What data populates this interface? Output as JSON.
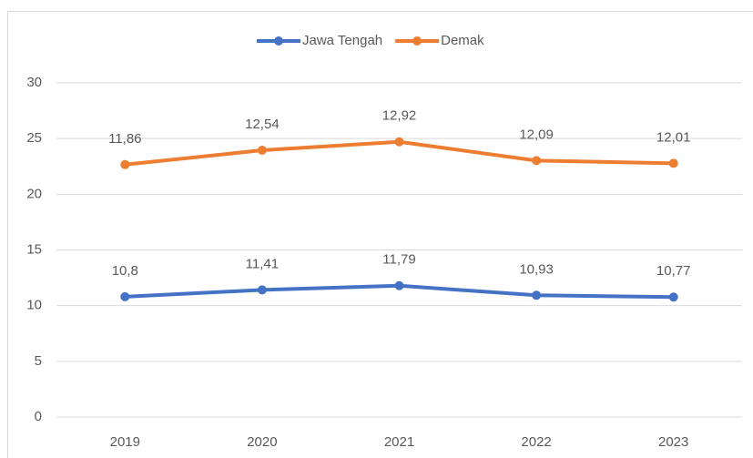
{
  "chart_data": {
    "type": "line",
    "stacked": true,
    "categories": [
      "2019",
      "2020",
      "2021",
      "2022",
      "2023"
    ],
    "series": [
      {
        "name": "Jawa Tengah",
        "color": "#4472c4",
        "values": [
          10.8,
          11.41,
          11.79,
          10.93,
          10.77
        ],
        "value_labels": [
          "10,8",
          "11,41",
          "11,79",
          "10,93",
          "10,77"
        ]
      },
      {
        "name": "Demak",
        "color": "#ed7d31",
        "values": [
          11.86,
          12.54,
          12.92,
          12.09,
          12.01
        ],
        "value_labels": [
          "11,86",
          "12,54",
          "12,92",
          "12,09",
          "12,01"
        ]
      }
    ],
    "ylim": [
      0,
      30
    ],
    "yticks": [
      0,
      5,
      10,
      15,
      20,
      25,
      30
    ],
    "grid": true,
    "legend": "top"
  }
}
